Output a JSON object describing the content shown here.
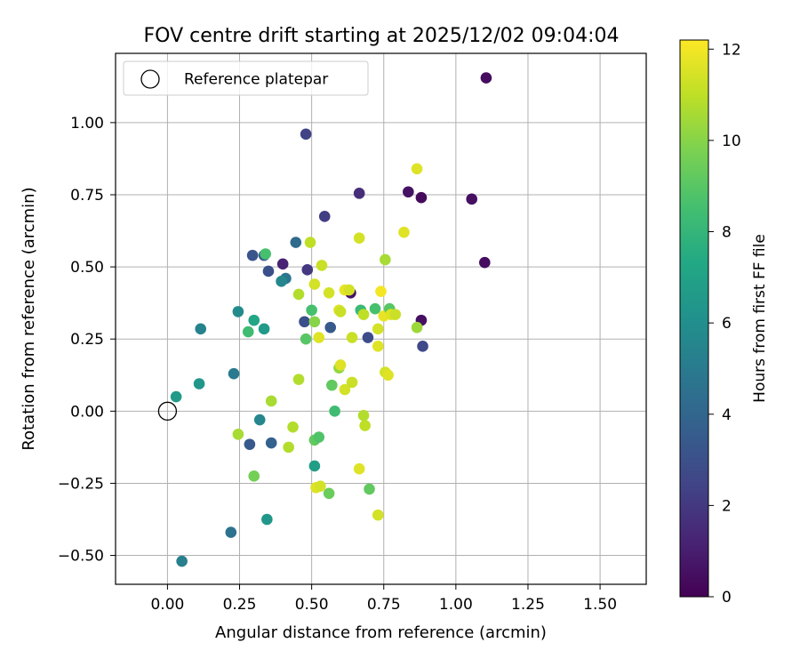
{
  "chart_data": {
    "type": "scatter",
    "title": "FOV centre drift starting at 2025/12/02 09:04:04",
    "xlabel": "Angular distance from reference (arcmin)",
    "ylabel": "Rotation from reference (arcmin)",
    "xlim": [
      -0.18,
      1.66
    ],
    "ylim": [
      -0.6,
      1.24
    ],
    "xticks": [
      0.0,
      0.25,
      0.5,
      0.75,
      1.0,
      1.25,
      1.5
    ],
    "xtick_labels": [
      "0.00",
      "0.25",
      "0.50",
      "0.75",
      "1.00",
      "1.25",
      "1.50"
    ],
    "yticks": [
      -0.5,
      -0.25,
      0.0,
      0.25,
      0.5,
      0.75,
      1.0
    ],
    "ytick_labels": [
      "−0.50",
      "−0.25",
      "0.00",
      "0.25",
      "0.50",
      "0.75",
      "1.00"
    ],
    "grid": true,
    "legend": {
      "position": "top-left",
      "label": "Reference platepar"
    },
    "reference_point": {
      "x": 0.0,
      "y": 0.0
    },
    "colorbar": {
      "label": "Hours from first FF file",
      "colormap": "viridis",
      "range": [
        0,
        12.2
      ],
      "ticks": [
        0,
        2,
        4,
        6,
        8,
        10,
        12
      ],
      "tick_labels": [
        "0",
        "2",
        "4",
        "6",
        "8",
        "10",
        "12"
      ]
    },
    "points": [
      {
        "x": 1.105,
        "y": 1.155,
        "h": 0.4
      },
      {
        "x": 0.48,
        "y": 0.96,
        "h": 2.4
      },
      {
        "x": 0.835,
        "y": 0.76,
        "h": 0.6
      },
      {
        "x": 0.88,
        "y": 0.74,
        "h": 0.3
      },
      {
        "x": 1.055,
        "y": 0.735,
        "h": 0.5
      },
      {
        "x": 0.665,
        "y": 0.755,
        "h": 1.6
      },
      {
        "x": 0.545,
        "y": 0.675,
        "h": 2.2
      },
      {
        "x": 1.1,
        "y": 0.515,
        "h": 0.4
      },
      {
        "x": 0.4,
        "y": 0.51,
        "h": 1.2
      },
      {
        "x": 0.485,
        "y": 0.49,
        "h": 2.0
      },
      {
        "x": 0.635,
        "y": 0.41,
        "h": 0.6
      },
      {
        "x": 0.88,
        "y": 0.315,
        "h": 0.5
      },
      {
        "x": 0.885,
        "y": 0.225,
        "h": 2.6
      },
      {
        "x": 0.695,
        "y": 0.255,
        "h": 2.8
      },
      {
        "x": 0.475,
        "y": 0.31,
        "h": 3.0
      },
      {
        "x": 0.565,
        "y": 0.29,
        "h": 3.4
      },
      {
        "x": 0.295,
        "y": 0.54,
        "h": 3.2
      },
      {
        "x": 0.335,
        "y": 0.54,
        "h": 3.6
      },
      {
        "x": 0.35,
        "y": 0.485,
        "h": 3.0
      },
      {
        "x": 0.445,
        "y": 0.585,
        "h": 4.2
      },
      {
        "x": 0.41,
        "y": 0.46,
        "h": 4.8
      },
      {
        "x": 0.395,
        "y": 0.45,
        "h": 5.6
      },
      {
        "x": 0.245,
        "y": 0.345,
        "h": 5.8
      },
      {
        "x": 0.115,
        "y": 0.285,
        "h": 5.4
      },
      {
        "x": 0.335,
        "y": 0.285,
        "h": 6.6
      },
      {
        "x": 0.3,
        "y": 0.315,
        "h": 7.2
      },
      {
        "x": 0.28,
        "y": 0.275,
        "h": 8.4
      },
      {
        "x": 0.34,
        "y": 0.545,
        "h": 8.6
      },
      {
        "x": 0.23,
        "y": 0.13,
        "h": 5.0
      },
      {
        "x": 0.11,
        "y": 0.095,
        "h": 6.4
      },
      {
        "x": 0.03,
        "y": 0.05,
        "h": 6.6
      },
      {
        "x": 0.32,
        "y": -0.03,
        "h": 5.6
      },
      {
        "x": 0.285,
        "y": -0.115,
        "h": 3.4
      },
      {
        "x": 0.36,
        "y": -0.11,
        "h": 3.8
      },
      {
        "x": 0.51,
        "y": -0.19,
        "h": 6.8
      },
      {
        "x": 0.345,
        "y": -0.375,
        "h": 6.4
      },
      {
        "x": 0.22,
        "y": -0.42,
        "h": 4.6
      },
      {
        "x": 0.05,
        "y": -0.52,
        "h": 5.2
      },
      {
        "x": 0.245,
        "y": -0.08,
        "h": 10.6
      },
      {
        "x": 0.3,
        "y": -0.225,
        "h": 9.6
      },
      {
        "x": 0.36,
        "y": 0.035,
        "h": 10.6
      },
      {
        "x": 0.42,
        "y": -0.125,
        "h": 10.8
      },
      {
        "x": 0.435,
        "y": -0.055,
        "h": 10.8
      },
      {
        "x": 0.51,
        "y": -0.1,
        "h": 9.2
      },
      {
        "x": 0.525,
        "y": -0.09,
        "h": 8.8
      },
      {
        "x": 0.515,
        "y": -0.265,
        "h": 11.6
      },
      {
        "x": 0.53,
        "y": -0.26,
        "h": 11.4
      },
      {
        "x": 0.56,
        "y": -0.285,
        "h": 9.4
      },
      {
        "x": 0.58,
        "y": 0.0,
        "h": 8.4
      },
      {
        "x": 0.57,
        "y": 0.09,
        "h": 9.2
      },
      {
        "x": 0.455,
        "y": 0.11,
        "h": 10.8
      },
      {
        "x": 0.48,
        "y": 0.25,
        "h": 9.0
      },
      {
        "x": 0.5,
        "y": 0.35,
        "h": 8.6
      },
      {
        "x": 0.51,
        "y": 0.31,
        "h": 10.0
      },
      {
        "x": 0.525,
        "y": 0.255,
        "h": 11.6
      },
      {
        "x": 0.455,
        "y": 0.405,
        "h": 10.8
      },
      {
        "x": 0.51,
        "y": 0.44,
        "h": 11.4
      },
      {
        "x": 0.495,
        "y": 0.585,
        "h": 11.0
      },
      {
        "x": 0.535,
        "y": 0.505,
        "h": 11.2
      },
      {
        "x": 0.56,
        "y": 0.41,
        "h": 11.4
      },
      {
        "x": 0.595,
        "y": 0.35,
        "h": 11.6
      },
      {
        "x": 0.6,
        "y": 0.345,
        "h": 11.2
      },
      {
        "x": 0.595,
        "y": 0.15,
        "h": 10.2
      },
      {
        "x": 0.6,
        "y": 0.16,
        "h": 11.6
      },
      {
        "x": 0.615,
        "y": 0.42,
        "h": 11.8
      },
      {
        "x": 0.63,
        "y": 0.42,
        "h": 11.4
      },
      {
        "x": 0.615,
        "y": 0.075,
        "h": 11.4
      },
      {
        "x": 0.64,
        "y": 0.255,
        "h": 11.2
      },
      {
        "x": 0.64,
        "y": 0.1,
        "h": 11.2
      },
      {
        "x": 0.665,
        "y": 0.6,
        "h": 11.4
      },
      {
        "x": 0.665,
        "y": -0.2,
        "h": 11.6
      },
      {
        "x": 0.67,
        "y": 0.35,
        "h": 8.2
      },
      {
        "x": 0.68,
        "y": 0.335,
        "h": 11.0
      },
      {
        "x": 0.68,
        "y": -0.015,
        "h": 10.8
      },
      {
        "x": 0.685,
        "y": -0.05,
        "h": 11.0
      },
      {
        "x": 0.7,
        "y": -0.27,
        "h": 9.2
      },
      {
        "x": 0.72,
        "y": 0.355,
        "h": 8.6
      },
      {
        "x": 0.73,
        "y": 0.285,
        "h": 11.4
      },
      {
        "x": 0.73,
        "y": 0.225,
        "h": 11.6
      },
      {
        "x": 0.73,
        "y": -0.36,
        "h": 11.4
      },
      {
        "x": 0.74,
        "y": 0.415,
        "h": 12.0
      },
      {
        "x": 0.75,
        "y": 0.33,
        "h": 11.8
      },
      {
        "x": 0.755,
        "y": 0.525,
        "h": 10.6
      },
      {
        "x": 0.755,
        "y": 0.135,
        "h": 11.4
      },
      {
        "x": 0.765,
        "y": 0.125,
        "h": 11.6
      },
      {
        "x": 0.77,
        "y": 0.355,
        "h": 9.0
      },
      {
        "x": 0.775,
        "y": 0.335,
        "h": 11.6
      },
      {
        "x": 0.79,
        "y": 0.335,
        "h": 11.2
      },
      {
        "x": 0.82,
        "y": 0.62,
        "h": 11.6
      },
      {
        "x": 0.865,
        "y": 0.84,
        "h": 11.6
      },
      {
        "x": 0.865,
        "y": 0.29,
        "h": 10.4
      }
    ]
  }
}
